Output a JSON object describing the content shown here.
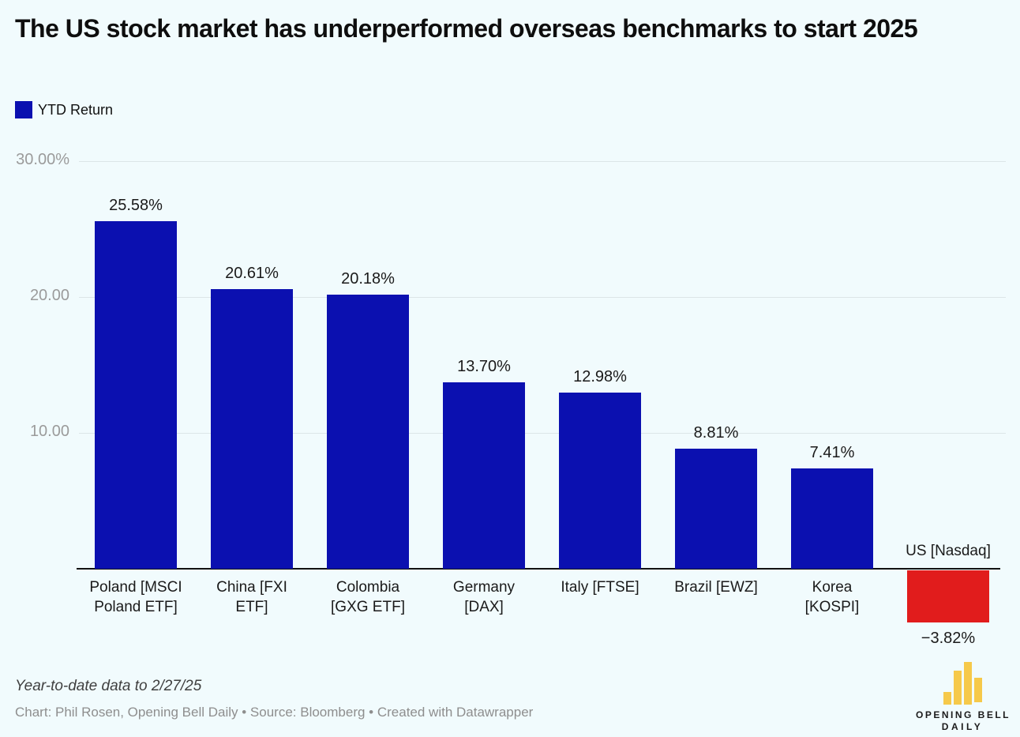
{
  "title": "The US stock market has underperformed overseas benchmarks to start 2025",
  "legend": {
    "label": "YTD Return"
  },
  "colors": {
    "background": "#f1fbfd",
    "positive_bar": "#0b10b0",
    "negative_bar": "#e11c1c",
    "logo_yellow": "#f6c94a"
  },
  "chart_data": {
    "type": "bar",
    "title": "The US stock market has underperformed overseas benchmarks to start 2025",
    "series_name": "YTD Return",
    "categories": [
      "Poland [MSCI Poland ETF]",
      "China [FXI ETF]",
      "Colombia [GXG ETF]",
      "Germany [DAX]",
      "Italy [FTSE]",
      "Brazil [EWZ]",
      "Korea [KOSPI]",
      "US [Nasdaq]"
    ],
    "category_label_lines": [
      [
        "Poland [MSCI",
        "Poland ETF]"
      ],
      [
        "China [FXI",
        "ETF]"
      ],
      [
        "Colombia",
        "[GXG ETF]"
      ],
      [
        "Germany",
        "[DAX]"
      ],
      [
        "Italy [FTSE]"
      ],
      [
        "Brazil [EWZ]"
      ],
      [
        "Korea",
        "[KOSPI]"
      ],
      [
        "US [Nasdaq]"
      ]
    ],
    "values": [
      25.58,
      20.61,
      20.18,
      13.7,
      12.98,
      8.81,
      7.41,
      -3.82
    ],
    "value_labels": [
      "25.58%",
      "20.61%",
      "20.18%",
      "13.70%",
      "12.98%",
      "8.81%",
      "7.41%",
      "−3.82%"
    ],
    "yticks": [
      {
        "value": 30,
        "label": "30.00%"
      },
      {
        "value": 20,
        "label": "20.00"
      },
      {
        "value": 10,
        "label": "10.00"
      }
    ],
    "ylim": [
      -5,
      30
    ],
    "xlabel": "",
    "ylabel": "",
    "grid": true,
    "legend_position": "top-left"
  },
  "footer": {
    "note": "Year-to-date data to 2/27/25",
    "byline": "Chart: Phil Rosen, Opening Bell Daily • Source: Bloomberg • Created with Datawrapper"
  },
  "logo": {
    "line1": "OPENING BELL",
    "line2": "DAILY"
  }
}
